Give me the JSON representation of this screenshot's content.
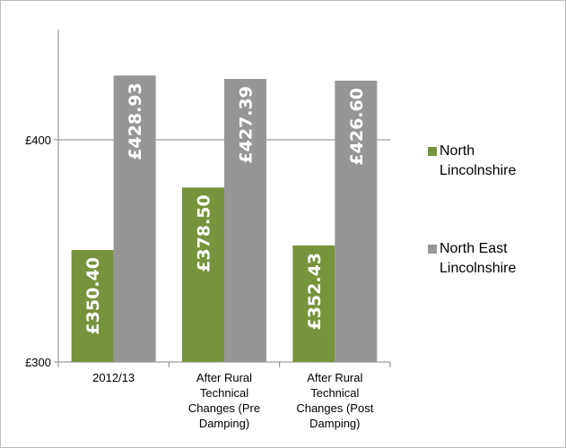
{
  "chart_data": {
    "type": "bar",
    "title": "",
    "xlabel": "",
    "ylabel": "",
    "categories": [
      [
        "2012/13"
      ],
      [
        "After Rural",
        "Technical",
        "Changes (Pre",
        "Damping)"
      ],
      [
        "After Rural",
        "Technical",
        "Changes (Post",
        "Damping)"
      ]
    ],
    "series": [
      {
        "name": [
          "North",
          "Lincolnshire"
        ],
        "color": "#77933c",
        "values": [
          350.4,
          378.5,
          352.43
        ],
        "labels": [
          "£350.40",
          "£378.50",
          "£352.43"
        ]
      },
      {
        "name": [
          "North East",
          "Lincolnshire"
        ],
        "color": "#969696",
        "values": [
          428.93,
          427.39,
          426.6
        ],
        "labels": [
          "£428.93",
          "£427.39",
          "£426.60"
        ]
      }
    ],
    "ylim": [
      300,
      400
    ],
    "yticks": [
      300,
      400
    ],
    "ytick_labels": [
      "£300",
      "£400"
    ],
    "grid": true,
    "legend": "right"
  }
}
